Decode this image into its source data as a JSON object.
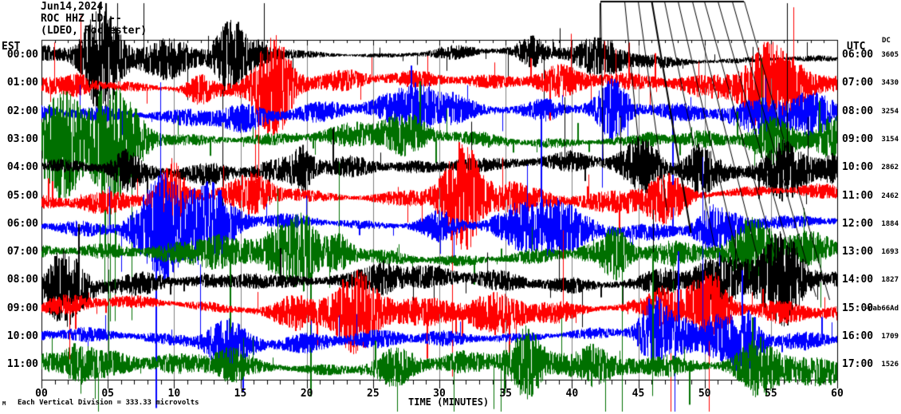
{
  "header": {
    "date": "Jun14,2024",
    "station": "ROC HHZ LD --",
    "network": "(LDEO, Rochester)"
  },
  "left_axis": {
    "label": "EST",
    "hours": [
      "00:00",
      "01:00",
      "02:00",
      "03:00",
      "04:00",
      "05:00",
      "06:00",
      "07:00",
      "08:00",
      "09:00",
      "10:00",
      "11:00"
    ]
  },
  "right_axis": {
    "label": "UTC",
    "dc_label": "DC",
    "hours": [
      "06:00",
      "07:00",
      "08:00",
      "09:00",
      "10:00",
      "11:00",
      "12:00",
      "13:00",
      "14:00",
      "15:00",
      "16:00",
      "17:00"
    ],
    "dc_values": [
      "3605",
      "3430",
      "3254",
      "3154",
      "2862",
      "2462",
      "1884",
      "1693",
      "1827",
      "-nab66Ad",
      "1709",
      "1526"
    ]
  },
  "x_axis": {
    "title": "TIME (MINUTES)",
    "tick_labels": [
      "00",
      "05",
      "10",
      "15",
      "20",
      "25",
      "30",
      "35",
      "40",
      "45",
      "50",
      "55",
      "60"
    ]
  },
  "footer": {
    "note": "Each Vertical Division = 333.33 microvolts",
    "corner_mark": "M"
  },
  "chart_data": {
    "type": "line",
    "subtype": "helicorder_seismogram",
    "station_title": "ROC HHZ LD -- (LDEO, Rochester)",
    "date": "Jun14,2024",
    "timezone_left": "EST",
    "timezone_right": "UTC",
    "x_range_minutes": [
      0,
      60
    ],
    "x_major_tick_minutes": 5,
    "x_minor_tick_minutes": 1,
    "vertical_division_microvolts": 333.33,
    "grid_color": "#808080",
    "frame_color": "#000000",
    "trace_colors": {
      "black": "#000000",
      "red": "#ff0000",
      "blue": "#0000ff",
      "green": "#007000"
    },
    "trace_color_cycle": [
      "black",
      "red",
      "blue",
      "green"
    ],
    "rows": [
      {
        "est": "00:00",
        "utc": "06:00",
        "dc": "3605",
        "color": "black",
        "seed": 11,
        "amp_envelope": [
          24,
          28,
          22,
          14,
          6,
          5,
          5,
          6,
          5,
          6,
          6,
          7,
          6
        ]
      },
      {
        "est": "01:00",
        "utc": "07:00",
        "dc": "3430",
        "color": "red",
        "seed": 22,
        "amp_envelope": [
          14,
          12,
          10,
          11,
          13,
          10,
          12,
          14,
          10,
          11,
          13,
          15,
          12
        ]
      },
      {
        "est": "02:00",
        "utc": "08:00",
        "dc": "3254",
        "color": "blue",
        "seed": 33,
        "amp_envelope": [
          13,
          15,
          11,
          10,
          12,
          11,
          10,
          13,
          11,
          10,
          12,
          13,
          11
        ]
      },
      {
        "est": "03:00",
        "utc": "09:00",
        "dc": "3154",
        "color": "green",
        "seed": 44,
        "amp_envelope": [
          20,
          22,
          14,
          11,
          10,
          11,
          12,
          10,
          11,
          10,
          12,
          11,
          10
        ]
      },
      {
        "est": "04:00",
        "utc": "10:00",
        "dc": "2862",
        "color": "black",
        "seed": 55,
        "amp_envelope": [
          14,
          18,
          16,
          12,
          13,
          15,
          12,
          13,
          16,
          12,
          15,
          17,
          18
        ]
      },
      {
        "est": "05:00",
        "utc": "11:00",
        "dc": "2462",
        "color": "red",
        "seed": 66,
        "amp_envelope": [
          12,
          14,
          11,
          12,
          10,
          11,
          13,
          10,
          12,
          13,
          11,
          12,
          11
        ]
      },
      {
        "est": "06:00",
        "utc": "12:00",
        "dc": "1884",
        "color": "blue",
        "seed": 77,
        "amp_envelope": [
          13,
          12,
          14,
          11,
          12,
          10,
          12,
          11,
          13,
          11,
          12,
          13,
          12
        ]
      },
      {
        "est": "07:00",
        "utc": "13:00",
        "dc": "1693",
        "color": "green",
        "seed": 88,
        "amp_envelope": [
          16,
          17,
          15,
          13,
          15,
          13,
          14,
          12,
          14,
          13,
          15,
          16,
          15
        ]
      },
      {
        "est": "08:00",
        "utc": "14:00",
        "dc": "1827",
        "color": "black",
        "seed": 99,
        "amp_envelope": [
          15,
          17,
          14,
          13,
          14,
          15,
          13,
          12,
          14,
          13,
          16,
          15,
          13
        ]
      },
      {
        "est": "09:00",
        "utc": "15:00",
        "dc": "-nab66Ad",
        "color": "red",
        "seed": 111,
        "amp_envelope": [
          12,
          13,
          11,
          12,
          10,
          12,
          11,
          12,
          10,
          12,
          11,
          13,
          12
        ]
      },
      {
        "est": "10:00",
        "utc": "16:00",
        "dc": "1709",
        "color": "blue",
        "seed": 122,
        "amp_envelope": [
          12,
          13,
          12,
          11,
          12,
          10,
          12,
          11,
          12,
          11,
          12,
          12,
          11
        ]
      },
      {
        "est": "11:00",
        "utc": "17:00",
        "dc": "1526",
        "color": "green",
        "seed": 133,
        "amp_envelope": [
          14,
          15,
          13,
          12,
          13,
          12,
          14,
          12,
          13,
          12,
          14,
          15,
          14
        ]
      }
    ],
    "clock_correction_overlay": {
      "bar": [
        753,
        2,
        933,
        2
      ],
      "lines": [
        [
          753,
          2,
          756,
          205
        ],
        [
          783,
          2,
          806,
          238
        ],
        [
          800,
          2,
          836,
          264
        ],
        [
          817,
          2,
          866,
          292
        ],
        [
          833,
          2,
          897,
          315
        ],
        [
          850,
          2,
          927,
          333
        ],
        [
          868,
          2,
          956,
          348
        ],
        [
          883,
          2,
          982,
          358
        ],
        [
          900,
          2,
          1004,
          366
        ],
        [
          918,
          2,
          1023,
          372
        ],
        [
          933,
          2,
          1040,
          376
        ]
      ]
    }
  }
}
